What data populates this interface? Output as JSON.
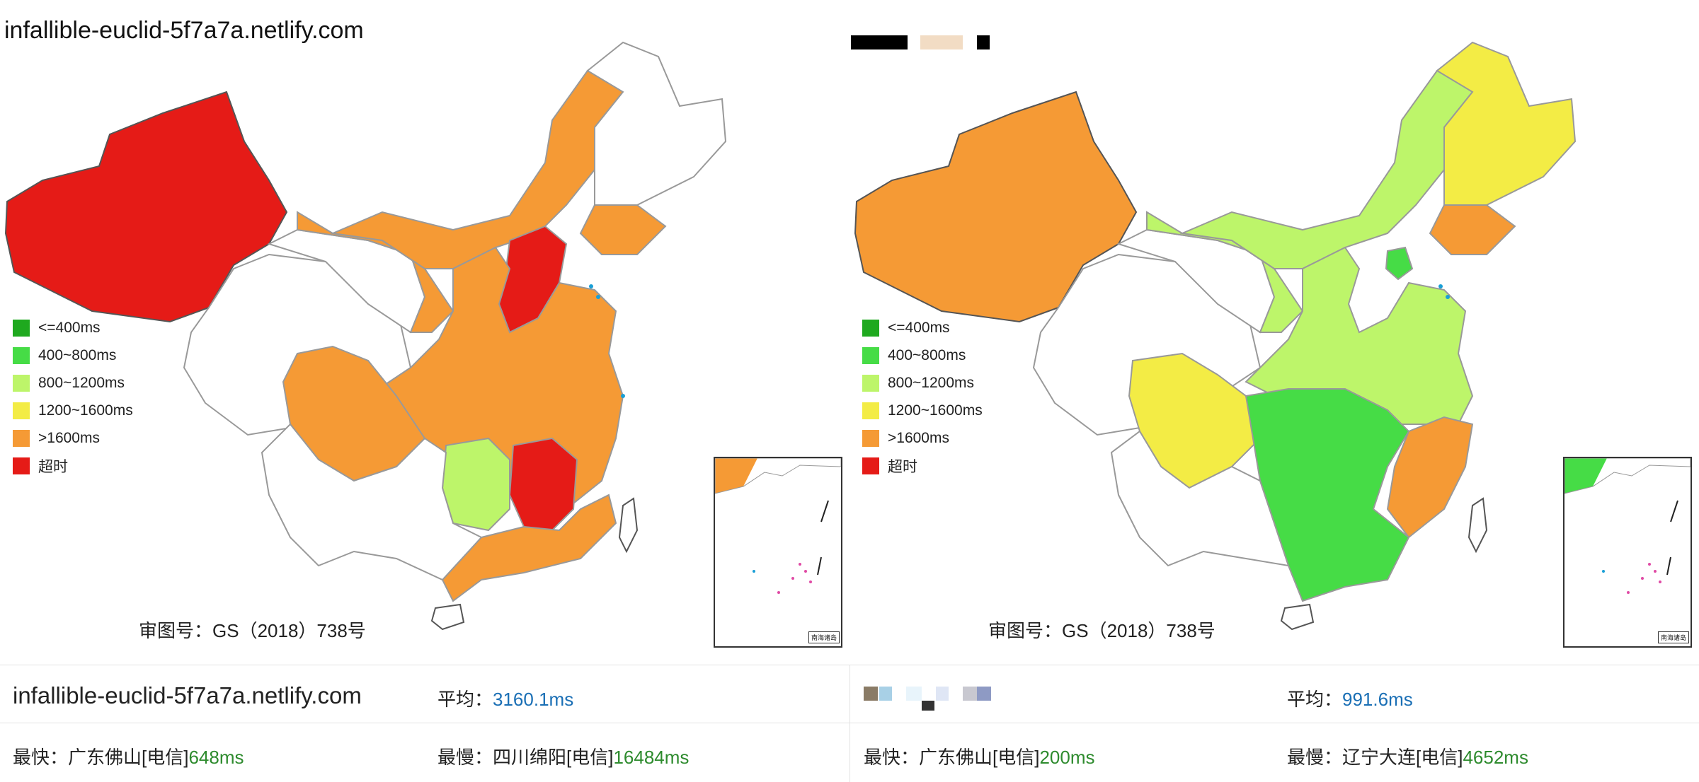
{
  "legend": {
    "items": [
      {
        "label": "<=400ms",
        "color": "#1fa91f"
      },
      {
        "label": "400~800ms",
        "color": "#46dc46"
      },
      {
        "label": "800~1200ms",
        "color": "#bdf56a"
      },
      {
        "label": "1200~1600ms",
        "color": "#f3ec45"
      },
      {
        "label": ">1600ms",
        "color": "#f59a35"
      },
      {
        "label": "超时",
        "color": "#e51b17"
      }
    ]
  },
  "map_left": {
    "title": "infallible-euclid-5f7a7a.netlify.com",
    "approval": "审图号：GS（2018）738号",
    "inset_label": "南海诸岛"
  },
  "map_right": {
    "approval": "审图号：GS（2018）738号",
    "inset_label": "南海诸岛"
  },
  "stats_left": {
    "name": "infallible-euclid-5f7a7a.netlify.com",
    "avg_label": "平均：",
    "avg_value": "3160.1ms",
    "fastest_label": "最快：广东佛山[电信]",
    "fastest_value": "648ms",
    "slowest_label": "最慢：四川绵阳[电信]",
    "slowest_value": "16484ms"
  },
  "stats_right": {
    "avg_label": "平均：",
    "avg_value": "991.6ms",
    "fastest_label": "最快：广东佛山[电信]",
    "fastest_value": "200ms",
    "slowest_label": "最慢：辽宁大连[电信]",
    "slowest_value": "4652ms"
  }
}
